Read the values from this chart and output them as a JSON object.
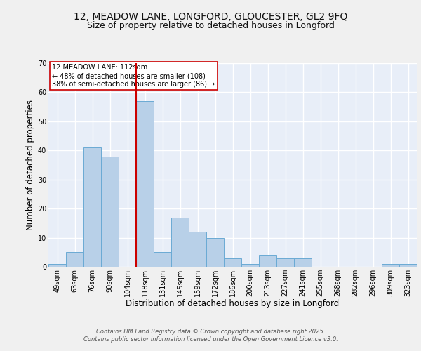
{
  "title1": "12, MEADOW LANE, LONGFORD, GLOUCESTER, GL2 9FQ",
  "title2": "Size of property relative to detached houses in Longford",
  "xlabel": "Distribution of detached houses by size in Longford",
  "ylabel": "Number of detached properties",
  "categories": [
    "49sqm",
    "63sqm",
    "76sqm",
    "90sqm",
    "104sqm",
    "118sqm",
    "131sqm",
    "145sqm",
    "159sqm",
    "172sqm",
    "186sqm",
    "200sqm",
    "213sqm",
    "227sqm",
    "241sqm",
    "255sqm",
    "268sqm",
    "282sqm",
    "296sqm",
    "309sqm",
    "323sqm"
  ],
  "values": [
    1,
    5,
    41,
    38,
    0,
    57,
    5,
    17,
    12,
    10,
    3,
    1,
    4,
    3,
    3,
    0,
    0,
    0,
    0,
    1,
    1
  ],
  "bar_color": "#b8d0e8",
  "bar_edge_color": "#6aaad4",
  "vline_x_index": 5,
  "vline_color": "#cc0000",
  "annotation_text": "12 MEADOW LANE: 112sqm\n← 48% of detached houses are smaller (108)\n38% of semi-detached houses are larger (86) →",
  "annotation_box_color": "#ffffff",
  "annotation_box_edge": "#cc0000",
  "footer": "Contains HM Land Registry data © Crown copyright and database right 2025.\nContains public sector information licensed under the Open Government Licence v3.0.",
  "ylim": [
    0,
    70
  ],
  "background_color": "#e8eef8",
  "grid_color": "#ffffff",
  "fig_background": "#f0f0f0",
  "title_fontsize": 10,
  "subtitle_fontsize": 9,
  "axis_label_fontsize": 8.5,
  "tick_fontsize": 7,
  "annotation_fontsize": 7,
  "footer_fontsize": 6
}
